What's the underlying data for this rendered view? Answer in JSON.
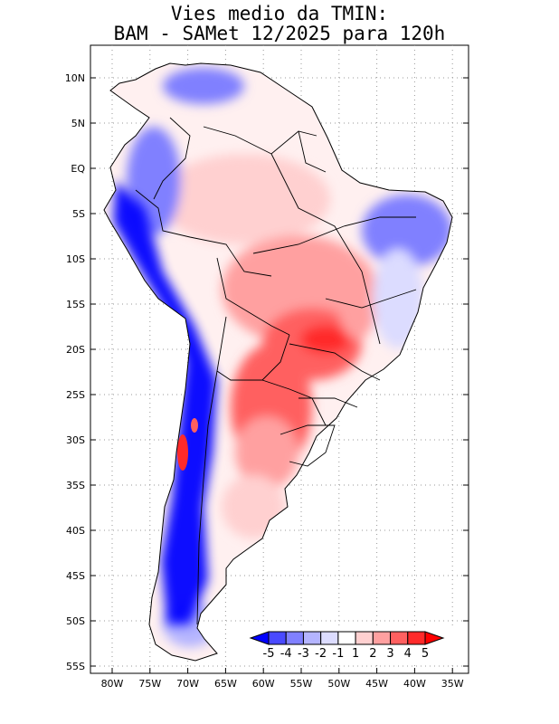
{
  "title": {
    "line1": "Vies medio da TMIN:",
    "line2": "BAM - SAMet 12/2025  para 120h"
  },
  "axes": {
    "lat_labels": [
      "10N",
      "5N",
      "EQ",
      "5S",
      "10S",
      "15S",
      "20S",
      "25S",
      "30S",
      "35S",
      "40S",
      "45S",
      "50S",
      "55S"
    ],
    "lon_labels": [
      "80W",
      "75W",
      "70W",
      "65W",
      "60W",
      "55W",
      "50W",
      "45W",
      "40W",
      "35W"
    ]
  },
  "colorbar": {
    "labels": [
      "-5",
      "-4",
      "-3",
      "-2",
      "-1",
      "1",
      "2",
      "3",
      "4",
      "5"
    ],
    "colors": [
      "#0000ff",
      "#4a4aff",
      "#8080ff",
      "#b4b4ff",
      "#dcdcff",
      "#ffffff",
      "#ffd0d0",
      "#ffa0a0",
      "#ff6060",
      "#ff2a2a",
      "#ff0000"
    ]
  },
  "map": {
    "ocean_color": "#ffffff",
    "warm_colors": [
      "#ffd0d0",
      "#ffa0a0",
      "#ff6060",
      "#ff2a2a"
    ],
    "cold_colors": [
      "#dcdcff",
      "#b4b4ff",
      "#8080ff",
      "#0000ff"
    ]
  }
}
